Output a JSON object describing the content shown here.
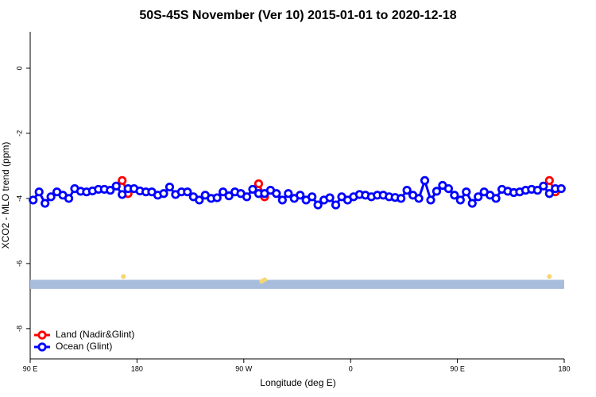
{
  "chart_data": {
    "type": "line",
    "title": "50S-45S November (Ver 10)   2015-01-01 to 2020-12-18",
    "x_label": "Longitude (deg E)",
    "y_label": "XCO2 - MLO trend (ppm)",
    "xlim": [
      90,
      540
    ],
    "ylim": [
      -8.93,
      1.12
    ],
    "xticks": [
      {
        "value": 90,
        "label": "90 E"
      },
      180,
      {
        "value": 270,
        "label": "90 W"
      },
      {
        "value": 360,
        "label": "0"
      },
      {
        "value": 450,
        "label": "90 E"
      },
      {
        "value": 540,
        "label": "180"
      }
    ],
    "yticks": [
      0,
      -2,
      -4,
      -6,
      -8
    ],
    "legend": "bottom-left",
    "series": [
      {
        "name": "Land (Nadir&Glint)",
        "color": "#ff0000",
        "x": [
          167.5,
          172.5,
          177.5,
          282.5,
          287.5,
          292.5,
          527.5,
          532.5
        ],
        "values": [
          -3.45,
          -3.85,
          null,
          -3.55,
          -3.95,
          null,
          -3.45,
          -3.8
        ]
      },
      {
        "name": "Ocean (Glint)",
        "color": "#0000ff",
        "x": [
          92.5,
          97.5,
          102.5,
          107.5,
          112.5,
          117.5,
          122.5,
          127.5,
          132.5,
          137.5,
          142.5,
          147.5,
          152.5,
          157.5,
          162.5,
          167.5,
          172.5,
          177.5,
          182.5,
          187.5,
          192.5,
          197.5,
          202.5,
          207.5,
          212.5,
          217.5,
          222.5,
          227.5,
          232.5,
          237.5,
          242.5,
          247.5,
          252.5,
          257.5,
          262.5,
          267.5,
          272.5,
          277.5,
          282.5,
          287.5,
          292.5,
          297.5,
          302.5,
          307.5,
          312.5,
          317.5,
          322.5,
          327.5,
          332.5,
          337.5,
          342.5,
          347.5,
          352.5,
          357.5,
          362.5,
          367.5,
          372.5,
          377.5,
          382.5,
          387.5,
          392.5,
          397.5,
          402.5,
          407.5,
          412.5,
          417.5,
          422.5,
          427.5,
          432.5,
          437.5,
          442.5,
          447.5,
          452.5,
          457.5,
          462.5,
          467.5,
          472.5,
          477.5,
          482.5,
          487.5,
          492.5,
          497.5,
          502.5,
          507.5,
          512.5,
          517.5,
          522.5,
          527.5,
          532.5,
          537.5
        ],
        "values": [
          -4.05,
          -3.8,
          -4.15,
          -3.95,
          -3.8,
          -3.9,
          -4.0,
          -3.7,
          -3.78,
          -3.8,
          -3.77,
          -3.72,
          -3.72,
          -3.75,
          -3.62,
          -3.88,
          -3.7,
          -3.7,
          -3.77,
          -3.8,
          -3.8,
          -3.9,
          -3.85,
          -3.65,
          -3.88,
          -3.8,
          -3.8,
          -3.95,
          -4.05,
          -3.9,
          -4.0,
          -3.98,
          -3.8,
          -3.92,
          -3.8,
          -3.85,
          -3.95,
          -3.72,
          -3.85,
          -3.85,
          -3.75,
          -3.85,
          -4.05,
          -3.85,
          -4.0,
          -3.9,
          -4.05,
          -3.95,
          -4.2,
          -4.05,
          -3.98,
          -4.2,
          -3.95,
          -4.05,
          -3.95,
          -3.88,
          -3.9,
          -3.95,
          -3.9,
          -3.9,
          -3.95,
          -3.97,
          -4.0,
          -3.75,
          -3.9,
          -4.0,
          -3.45,
          -4.05,
          -3.78,
          -3.6,
          -3.7,
          -3.9,
          -4.05,
          -3.8,
          -4.15,
          -3.95,
          -3.8,
          -3.9,
          -4.0,
          -3.72,
          -3.78,
          -3.82,
          -3.8,
          -3.75,
          -3.72,
          -3.75,
          -3.62,
          -3.85,
          -3.7,
          -3.7
        ]
      }
    ],
    "band": {
      "ymin": -6.78,
      "ymax": -6.5,
      "color": "#a8bcdc"
    },
    "band_markers": {
      "color": "#f5d76e",
      "x": [
        168.5,
        285,
        287.5,
        527.5
      ],
      "values": [
        -6.4,
        -6.55,
        -6.5,
        -6.4
      ]
    }
  }
}
